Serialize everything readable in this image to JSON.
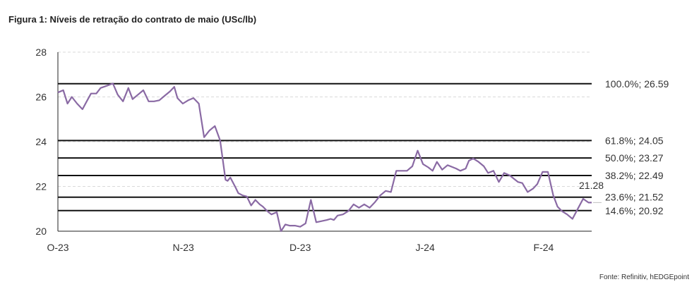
{
  "chart_data": {
    "type": "line",
    "title": "Figura 1: Níveis de retração do contrato de maio (USc/lb)",
    "source": "Fonte: Refinitiv, hEDGEpoint",
    "ylim": [
      20,
      28
    ],
    "yticks": [
      20,
      22,
      24,
      26,
      28
    ],
    "grid": true,
    "xlim": [
      0,
      100
    ],
    "xticks": [
      {
        "label": "O-23",
        "x": 0
      },
      {
        "label": "N-23",
        "x": 23.5
      },
      {
        "label": "D-23",
        "x": 45.4
      },
      {
        "label": "J-24",
        "x": 68.8
      },
      {
        "label": "F-24",
        "x": 91.0
      }
    ],
    "levels": [
      {
        "label": "100.0%; 26.59",
        "value": 26.59
      },
      {
        "label": "61.8%; 24.05",
        "value": 24.05
      },
      {
        "label": "50.0%; 23.27",
        "value": 23.27
      },
      {
        "label": "38.2%; 22.49",
        "value": 22.49
      },
      {
        "label": "23.6%; 21.52",
        "value": 21.52
      },
      {
        "label": "14.6%; 20.92",
        "value": 20.92
      }
    ],
    "last_value_label": "21.28",
    "line_color": "#8a6aa4",
    "series": [
      {
        "x": [
          0,
          1,
          1.8,
          2.6,
          3.6,
          4.6,
          5.4,
          6.2,
          7.2,
          8,
          9.2,
          10.3,
          11.2,
          12.2,
          13.2,
          14,
          15,
          16,
          17,
          18,
          19,
          20,
          21,
          21.8,
          22.4,
          23.4,
          24.4,
          25.4,
          26.4,
          27.4,
          28.4,
          29.4,
          30.4,
          31.4,
          31.8,
          32.3,
          33.3,
          33.8,
          34.6,
          35.4,
          36.2,
          37,
          37.8,
          38.4,
          39.2,
          40,
          41,
          41.8,
          42.6,
          43.4,
          44.4,
          45.4,
          46.4,
          47.4,
          48.4,
          49.4,
          50.4,
          51.1,
          51.7,
          52.4,
          53.4,
          54.4,
          55.4,
          56.4,
          57.4,
          58.4,
          59.4,
          60.4,
          61.4,
          62.4,
          63.4,
          64.4,
          65.4,
          66.4,
          67.4,
          68.4,
          69.4,
          70.2,
          71,
          72,
          73,
          74.6,
          75.4,
          76.4,
          77,
          77.8,
          78.8,
          79.8,
          80.6,
          81.6,
          82.6,
          83.6,
          84.6,
          85.4,
          86.2,
          87,
          88,
          89,
          89.8,
          90.8,
          91.8,
          92.8,
          93.6,
          94.4,
          95.4,
          96.4,
          97.4,
          98.4,
          99.4,
          100
        ],
        "values": [
          26.2,
          26.3,
          25.7,
          26.0,
          25.7,
          25.45,
          25.8,
          26.15,
          26.15,
          26.4,
          26.5,
          26.6,
          26.1,
          25.8,
          26.4,
          25.9,
          26.1,
          26.3,
          25.8,
          25.8,
          25.85,
          26.05,
          26.25,
          26.45,
          25.95,
          25.7,
          25.85,
          25.95,
          25.7,
          24.2,
          24.5,
          24.7,
          24.05,
          22.3,
          22.25,
          22.4,
          21.95,
          21.7,
          21.6,
          21.55,
          21.15,
          21.4,
          21.2,
          21.1,
          20.9,
          20.75,
          20.85,
          20.0,
          20.3,
          20.25,
          20.25,
          20.2,
          20.35,
          21.4,
          20.4,
          20.45,
          20.5,
          20.55,
          20.5,
          20.7,
          20.75,
          20.9,
          21.2,
          21.05,
          21.2,
          21.05,
          21.3,
          21.6,
          21.8,
          21.75,
          22.7,
          22.7,
          22.7,
          22.9,
          23.6,
          23.0,
          22.85,
          22.7,
          23.1,
          22.75,
          22.95,
          22.8,
          22.7,
          22.8,
          23.15,
          23.25,
          23.1,
          22.9,
          22.6,
          22.7,
          22.2,
          22.6,
          22.5,
          22.35,
          22.2,
          22.15,
          21.75,
          21.9,
          22.1,
          22.65,
          22.65,
          21.6,
          21.1,
          20.9,
          20.75,
          20.55,
          21.0,
          21.45,
          21.28,
          21.28
        ]
      }
    ]
  }
}
